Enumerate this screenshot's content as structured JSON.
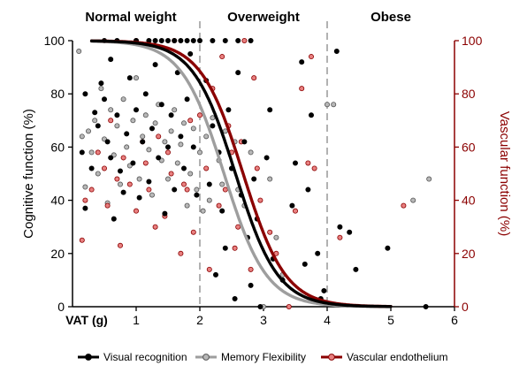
{
  "chart_data": {
    "type": "scatter",
    "title": "",
    "x_label": "VAT (g)",
    "x_ticks": [
      1,
      2,
      3,
      4,
      5,
      6
    ],
    "x_range": [
      0,
      6
    ],
    "y_left_label": "Cognitive function (%)",
    "y_left_ticks": [
      0,
      20,
      40,
      60,
      80,
      100
    ],
    "y_right_label": "Vascular function (%)",
    "y_right_ticks": [
      0,
      20,
      40,
      60,
      80,
      100
    ],
    "y_range": [
      0,
      100
    ],
    "zones": [
      {
        "label": "Normal weight",
        "x_start": 0,
        "x_end": 2
      },
      {
        "label": "Overweight",
        "x_start": 2,
        "x_end": 4
      },
      {
        "label": "Obese",
        "x_start": 4,
        "x_end": 6
      }
    ],
    "thresholds": [
      2,
      4
    ],
    "colors": {
      "visual": "#000000",
      "memory": "#9e9e9e",
      "vascular": "#8b0000",
      "vascular_fill": "#e88080"
    },
    "series": [
      {
        "name": "Visual recognition",
        "key": "visual",
        "fit": {
          "x50": 2.56,
          "k": 3.0
        },
        "points": [
          [
            0.15,
            58
          ],
          [
            0.2,
            37
          ],
          [
            0.2,
            80
          ],
          [
            0.3,
            52
          ],
          [
            0.35,
            73
          ],
          [
            0.4,
            68
          ],
          [
            0.45,
            84
          ],
          [
            0.5,
            78
          ],
          [
            0.55,
            62
          ],
          [
            0.6,
            56
          ],
          [
            0.6,
            93
          ],
          [
            0.65,
            33
          ],
          [
            0.7,
            72
          ],
          [
            0.75,
            51
          ],
          [
            0.8,
            43
          ],
          [
            0.85,
            65
          ],
          [
            0.9,
            86
          ],
          [
            0.95,
            54
          ],
          [
            1.0,
            74
          ],
          [
            1.0,
            100
          ],
          [
            1.05,
            41
          ],
          [
            1.1,
            62
          ],
          [
            1.15,
            80
          ],
          [
            1.2,
            47
          ],
          [
            1.25,
            67
          ],
          [
            1.3,
            91
          ],
          [
            1.35,
            56
          ],
          [
            1.4,
            76
          ],
          [
            1.45,
            35
          ],
          [
            1.5,
            60
          ],
          [
            1.55,
            72
          ],
          [
            1.6,
            44
          ],
          [
            1.65,
            88
          ],
          [
            1.7,
            64
          ],
          [
            1.75,
            52
          ],
          [
            1.8,
            78
          ],
          [
            1.85,
            95
          ],
          [
            1.9,
            60
          ],
          [
            1.95,
            42
          ],
          [
            0.5,
            100
          ],
          [
            0.7,
            100
          ],
          [
            1.2,
            100
          ],
          [
            1.3,
            100
          ],
          [
            1.4,
            100
          ],
          [
            1.5,
            100
          ],
          [
            1.6,
            100
          ],
          [
            1.7,
            100
          ],
          [
            1.8,
            100
          ],
          [
            1.9,
            100
          ],
          [
            2.0,
            100
          ],
          [
            2.2,
            100
          ],
          [
            2.4,
            100
          ],
          [
            2.6,
            100
          ],
          [
            2.8,
            100
          ],
          [
            2.1,
            85
          ],
          [
            2.15,
            46
          ],
          [
            2.2,
            68
          ],
          [
            2.25,
            12
          ],
          [
            2.3,
            58
          ],
          [
            2.35,
            36
          ],
          [
            2.4,
            22
          ],
          [
            2.45,
            74
          ],
          [
            2.5,
            52
          ],
          [
            2.55,
            3
          ],
          [
            2.6,
            88
          ],
          [
            2.65,
            42
          ],
          [
            2.7,
            62
          ],
          [
            2.75,
            26
          ],
          [
            2.8,
            8
          ],
          [
            2.85,
            48
          ],
          [
            2.9,
            33
          ],
          [
            2.95,
            0
          ],
          [
            3.05,
            56
          ],
          [
            3.1,
            74
          ],
          [
            3.15,
            18
          ],
          [
            3.3,
            10
          ],
          [
            3.45,
            38
          ],
          [
            3.5,
            54
          ],
          [
            3.6,
            92
          ],
          [
            3.65,
            16
          ],
          [
            3.7,
            44
          ],
          [
            3.75,
            72
          ],
          [
            3.85,
            20
          ],
          [
            3.9,
            3
          ],
          [
            3.95,
            6
          ],
          [
            4.15,
            96
          ],
          [
            4.2,
            30
          ],
          [
            4.35,
            28
          ],
          [
            4.45,
            14
          ],
          [
            4.95,
            22
          ],
          [
            5.55,
            0
          ]
        ]
      },
      {
        "name": "Memory Flexibility",
        "key": "memory",
        "fit": {
          "x50": 2.38,
          "k": 3.0
        },
        "points": [
          [
            0.1,
            96
          ],
          [
            0.15,
            64
          ],
          [
            0.2,
            45
          ],
          [
            0.25,
            66
          ],
          [
            0.3,
            58
          ],
          [
            0.35,
            70
          ],
          [
            0.4,
            50
          ],
          [
            0.45,
            82
          ],
          [
            0.5,
            63
          ],
          [
            0.55,
            39
          ],
          [
            0.6,
            74
          ],
          [
            0.65,
            57
          ],
          [
            0.7,
            68
          ],
          [
            0.75,
            46
          ],
          [
            0.8,
            78
          ],
          [
            0.85,
            60
          ],
          [
            0.9,
            53
          ],
          [
            0.95,
            70
          ],
          [
            1.0,
            86
          ],
          [
            1.05,
            48
          ],
          [
            1.1,
            64
          ],
          [
            1.15,
            72
          ],
          [
            1.2,
            59
          ],
          [
            1.25,
            42
          ],
          [
            1.3,
            69
          ],
          [
            1.35,
            76
          ],
          [
            1.4,
            55
          ],
          [
            1.45,
            62
          ],
          [
            1.5,
            48
          ],
          [
            1.55,
            66
          ],
          [
            1.6,
            74
          ],
          [
            1.65,
            54
          ],
          [
            1.7,
            61
          ],
          [
            1.75,
            69
          ],
          [
            1.8,
            38
          ],
          [
            1.85,
            50
          ],
          [
            1.9,
            67
          ],
          [
            1.95,
            44
          ],
          [
            2.0,
            58
          ],
          [
            2.05,
            36
          ],
          [
            2.1,
            64
          ],
          [
            2.15,
            40
          ],
          [
            2.2,
            71
          ],
          [
            2.3,
            55
          ],
          [
            2.35,
            46
          ],
          [
            2.4,
            66
          ],
          [
            2.5,
            52
          ],
          [
            2.55,
            62
          ],
          [
            2.6,
            44
          ],
          [
            2.7,
            38
          ],
          [
            2.8,
            58
          ],
          [
            3.0,
            0
          ],
          [
            3.1,
            48
          ],
          [
            3.2,
            26
          ],
          [
            3.3,
            12
          ],
          [
            4.0,
            76
          ],
          [
            4.1,
            76
          ],
          [
            5.35,
            40
          ],
          [
            5.6,
            48
          ]
        ]
      },
      {
        "name": "Vascular endothelium",
        "key": "vascular",
        "fit": {
          "x50": 2.68,
          "k": 3.0
        },
        "points": [
          [
            0.15,
            25
          ],
          [
            0.2,
            40
          ],
          [
            0.3,
            44
          ],
          [
            0.4,
            58
          ],
          [
            0.5,
            52
          ],
          [
            0.55,
            38
          ],
          [
            0.6,
            70
          ],
          [
            0.7,
            48
          ],
          [
            0.75,
            23
          ],
          [
            0.8,
            56
          ],
          [
            0.9,
            46
          ],
          [
            1.0,
            36
          ],
          [
            1.0,
            100
          ],
          [
            1.1,
            62
          ],
          [
            1.15,
            54
          ],
          [
            1.2,
            44
          ],
          [
            1.3,
            30
          ],
          [
            1.35,
            64
          ],
          [
            1.45,
            34
          ],
          [
            1.5,
            58
          ],
          [
            1.55,
            50
          ],
          [
            1.6,
            100
          ],
          [
            1.7,
            20
          ],
          [
            1.75,
            46
          ],
          [
            1.8,
            44
          ],
          [
            1.85,
            70
          ],
          [
            1.9,
            28
          ],
          [
            2.0,
            72
          ],
          [
            2.1,
            52
          ],
          [
            2.15,
            14
          ],
          [
            2.2,
            82
          ],
          [
            2.3,
            38
          ],
          [
            2.35,
            94
          ],
          [
            2.4,
            44
          ],
          [
            2.45,
            68
          ],
          [
            2.5,
            58
          ],
          [
            2.55,
            22
          ],
          [
            2.6,
            30
          ],
          [
            2.65,
            62
          ],
          [
            2.7,
            100
          ],
          [
            2.8,
            14
          ],
          [
            2.85,
            86
          ],
          [
            2.9,
            52
          ],
          [
            2.95,
            40
          ],
          [
            3.1,
            28
          ],
          [
            3.2,
            20
          ],
          [
            3.4,
            0
          ],
          [
            3.5,
            36
          ],
          [
            3.6,
            82
          ],
          [
            3.7,
            54
          ],
          [
            3.75,
            94
          ],
          [
            3.8,
            52
          ],
          [
            4.2,
            26
          ],
          [
            5.2,
            38
          ]
        ]
      }
    ],
    "legend_position": "bottom"
  }
}
